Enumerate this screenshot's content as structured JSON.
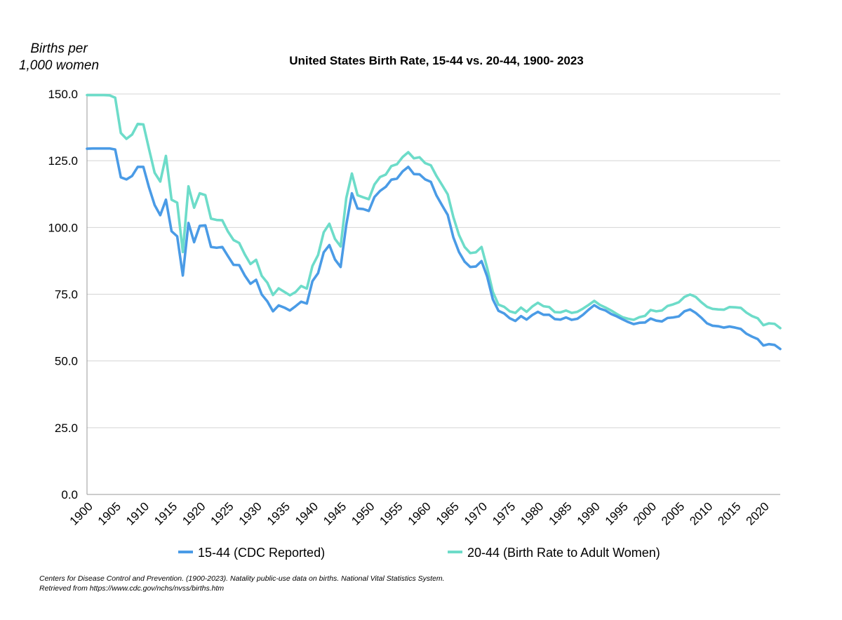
{
  "chart_data": {
    "type": "line",
    "title": "United States Birth Rate, 15-44 vs. 20-44, 1900- 2023",
    "ylabel_lines": [
      "Births per",
      "1,000 women"
    ],
    "xlabel": "",
    "ylim": [
      0,
      150
    ],
    "xlim": [
      1900,
      2023
    ],
    "yticks": [
      "0.0",
      "25.0",
      "50.0",
      "75.0",
      "100.0",
      "125.0",
      "150.0"
    ],
    "xticks": [
      "1900",
      "1905",
      "1910",
      "1915",
      "1920",
      "1925",
      "1930",
      "1935",
      "1940",
      "1945",
      "1950",
      "1955",
      "1960",
      "1965",
      "1970",
      "1975",
      "1980",
      "1985",
      "1990",
      "1995",
      "2000",
      "2005",
      "2010",
      "2015",
      "2020"
    ],
    "grid": "horizontal",
    "legend_position": "bottom",
    "x_start": 1900,
    "series": [
      {
        "name": "15-44 (CDC Reported)",
        "color": "#4a9be6",
        "values": [
          129.5,
          129.6,
          129.6,
          129.6,
          129.6,
          129.2,
          118.8,
          118.0,
          119.3,
          122.7,
          122.7,
          115.0,
          108.4,
          104.6,
          110.4,
          98.6,
          96.7,
          82.0,
          101.7,
          94.5,
          100.6,
          100.8,
          92.7,
          92.4,
          92.7,
          89.3,
          86.0,
          85.9,
          82.0,
          78.9,
          80.4,
          74.9,
          72.3,
          68.6,
          70.8,
          70.0,
          68.9,
          70.5,
          72.2,
          71.5,
          79.9,
          82.9,
          90.7,
          93.4,
          88.0,
          85.2,
          101.0,
          112.8,
          107.1,
          106.9,
          106.2,
          111.4,
          113.7,
          115.2,
          117.9,
          118.3,
          121.0,
          122.7,
          120.0,
          119.9,
          118.0,
          117.1,
          112.0,
          108.3,
          104.7,
          96.3,
          90.8,
          87.2,
          85.2,
          85.4,
          87.4,
          81.6,
          73.1,
          68.8,
          67.8,
          66.0,
          65.0,
          66.8,
          65.5,
          67.2,
          68.4,
          67.3,
          67.3,
          65.7,
          65.5,
          66.3,
          65.4,
          65.8,
          67.3,
          69.2,
          70.9,
          69.6,
          68.9,
          67.6,
          66.7,
          65.6,
          64.6,
          63.8,
          64.3,
          64.4,
          65.9,
          65.1,
          64.8,
          66.1,
          66.3,
          66.7,
          68.6,
          69.3,
          68.0,
          66.2,
          64.1,
          63.2,
          63.0,
          62.5,
          62.9,
          62.5,
          62.0,
          60.2,
          59.1,
          58.2,
          55.8,
          56.3,
          56.0,
          54.5
        ]
      },
      {
        "name": "20-44 (Birth Rate to Adult Women)",
        "color": "#6ddcc9",
        "values": [
          149.6,
          149.6,
          149.6,
          149.6,
          149.5,
          148.6,
          135.4,
          133.2,
          134.8,
          138.8,
          138.6,
          129.4,
          120.5,
          117.2,
          126.8,
          110.4,
          109.3,
          90.8,
          115.4,
          107.4,
          112.8,
          112.1,
          103.3,
          102.8,
          102.7,
          98.5,
          95.3,
          94.2,
          89.9,
          86.3,
          87.9,
          81.9,
          79.3,
          74.7,
          77.2,
          75.9,
          74.6,
          75.8,
          78.1,
          77.1,
          85.6,
          89.7,
          98.2,
          101.4,
          95.7,
          92.9,
          111.0,
          120.2,
          112.1,
          111.3,
          110.6,
          116.1,
          118.9,
          119.8,
          123.0,
          123.7,
          126.4,
          128.2,
          125.9,
          126.3,
          124.1,
          123.3,
          119.3,
          115.9,
          112.4,
          103.9,
          97.2,
          92.7,
          90.4,
          90.7,
          92.7,
          84.8,
          75.9,
          71.1,
          70.3,
          68.6,
          68.0,
          70.0,
          68.4,
          70.4,
          71.8,
          70.5,
          70.2,
          68.3,
          68.2,
          68.9,
          68.0,
          68.4,
          69.6,
          71.0,
          72.5,
          71.0,
          70.0,
          68.9,
          67.6,
          66.4,
          65.8,
          65.4,
          66.4,
          66.9,
          69.1,
          68.6,
          68.9,
          70.6,
          71.2,
          72.0,
          74.0,
          74.9,
          74.0,
          72.0,
          70.3,
          69.5,
          69.3,
          69.2,
          70.2,
          70.1,
          69.9,
          68.1,
          66.8,
          66.0,
          63.4,
          64.1,
          63.9,
          62.3
        ]
      }
    ]
  },
  "footer": {
    "line1": "Centers for Disease Control and Prevention. (1900-2023). Natality public-use data on births. National Vital Statistics System.",
    "line2": "Retrieved from https://www.cdc.gov/nchs/nvss/births.htm"
  }
}
